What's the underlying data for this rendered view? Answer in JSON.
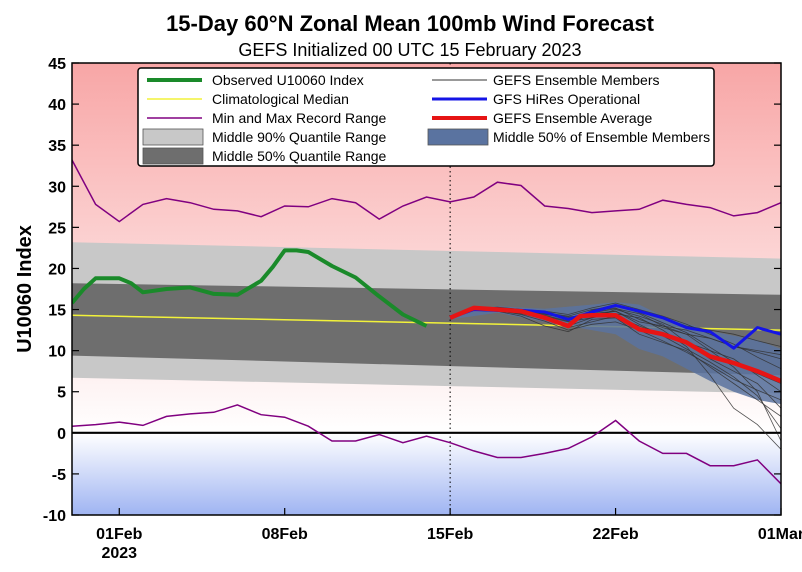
{
  "chart_data": {
    "type": "line",
    "title": "15-Day 60°N Zonal Mean 100mb Wind Forecast",
    "subtitle": "GEFS Initialized 00 UTC 15 February 2023",
    "ylabel": "U10060 Index",
    "xlabel": "",
    "ylim": [
      -10,
      45
    ],
    "xlim": [
      -2,
      28
    ],
    "yticks": [
      -10,
      -5,
      0,
      5,
      10,
      15,
      20,
      25,
      30,
      35,
      40,
      45
    ],
    "xticks": [
      {
        "day": 0,
        "label": "01Feb",
        "sublabel": "2023"
      },
      {
        "day": 7,
        "label": "08Feb",
        "sublabel": ""
      },
      {
        "day": 14,
        "label": "15Feb",
        "sublabel": ""
      },
      {
        "day": 21,
        "label": "22Feb",
        "sublabel": ""
      },
      {
        "day": 28,
        "label": "01Mar",
        "sublabel": ""
      }
    ],
    "init_day": 14,
    "legend": {
      "placement": "top",
      "entries": [
        {
          "label": "Observed U10060 Index",
          "style": "line",
          "color": "#1a8a2a",
          "width": 4
        },
        {
          "label": "Climatological Median",
          "style": "line",
          "color": "#f2f23a",
          "width": 1.5
        },
        {
          "label": "Min and Max Record Range",
          "style": "line",
          "color": "#800080",
          "width": 1.5
        },
        {
          "label": "Middle 90% Quantile Range",
          "style": "patch",
          "color": "#c8c8c8"
        },
        {
          "label": "Middle 50% Quantile Range",
          "style": "patch",
          "color": "#6e6e6e"
        },
        {
          "label": "GEFS Ensemble Members",
          "style": "line",
          "color": "#333333",
          "width": 1
        },
        {
          "label": "GFS HiRes Operational",
          "style": "line",
          "color": "#1414e6",
          "width": 3
        },
        {
          "label": "GEFS Ensemble Average",
          "style": "line",
          "color": "#e61414",
          "width": 4
        },
        {
          "label": "Middle 50% of Ensemble Members",
          "style": "patch",
          "color": "#5a73a0"
        }
      ]
    },
    "colors": {
      "positive_bg_top": "#f8a6a6",
      "negative_bg_bottom": "#9fb4f2",
      "zero_line": "#000000",
      "observed": "#1a8a2a",
      "climatology": "#f2f23a",
      "record": "#800080",
      "q90": "#c8c8c8",
      "q50": "#6e6e6e",
      "ensemble_member": "#333333",
      "operational": "#1414e6",
      "ensemble_mean": "#e61414",
      "ensemble_iqr": "#5a73a0"
    },
    "series": [
      {
        "name": "Observed U10060 Index",
        "x": [
          -2,
          -1.5,
          -1,
          0,
          0.5,
          1,
          2,
          3,
          4,
          5,
          6,
          6.5,
          7,
          7.5,
          8,
          9,
          10,
          11,
          12,
          13
        ],
        "values": [
          15.8,
          17.5,
          18.8,
          18.8,
          18.2,
          17.1,
          17.5,
          17.7,
          16.9,
          16.8,
          18.5,
          20.2,
          22.2,
          22.2,
          22.0,
          20.3,
          18.9,
          16.6,
          14.4,
          13.0
        ]
      },
      {
        "name": "Climatological Median",
        "x": [
          -2,
          28
        ],
        "values": [
          14.3,
          12.5
        ]
      },
      {
        "name": "Record Max",
        "x": [
          -2,
          -1,
          0,
          1,
          2,
          3,
          4,
          5,
          6,
          7,
          8,
          9,
          10,
          11,
          12,
          13,
          14,
          15,
          16,
          17,
          18,
          19,
          20,
          21,
          22,
          23,
          24,
          25,
          26,
          27,
          28
        ],
        "values": [
          33.2,
          27.8,
          25.7,
          27.8,
          28.5,
          28.0,
          27.2,
          27.0,
          26.3,
          27.6,
          27.5,
          28.5,
          28.0,
          26.0,
          27.6,
          28.7,
          28.1,
          28.7,
          30.5,
          30.1,
          27.6,
          27.3,
          26.8,
          27.0,
          27.2,
          28.3,
          27.8,
          27.4,
          26.4,
          26.8,
          28.0
        ]
      },
      {
        "name": "Record Min",
        "x": [
          -2,
          -1,
          0,
          1,
          2,
          3,
          4,
          5,
          6,
          7,
          8,
          9,
          10,
          11,
          12,
          13,
          14,
          15,
          16,
          17,
          18,
          19,
          20,
          21,
          22,
          23,
          24,
          25,
          26,
          27,
          28
        ],
        "values": [
          0.8,
          1.0,
          1.3,
          0.9,
          2.0,
          2.3,
          2.5,
          3.4,
          2.2,
          1.9,
          0.8,
          -1.0,
          -1.0,
          -0.2,
          -1.2,
          -0.4,
          -1.2,
          -2.2,
          -3.0,
          -3.0,
          -2.5,
          -1.9,
          -0.5,
          1.5,
          -1.0,
          -2.5,
          -2.5,
          -4.0,
          -4.0,
          -3.3,
          -6.2
        ]
      },
      {
        "name": "Middle 90% Quantile Range (upper)",
        "x": [
          -2,
          28
        ],
        "values": [
          23.2,
          21.2
        ]
      },
      {
        "name": "Middle 90% Quantile Range (lower)",
        "x": [
          -2,
          28
        ],
        "values": [
          6.7,
          4.8
        ]
      },
      {
        "name": "Middle 50% Quantile Range (upper)",
        "x": [
          -2,
          28
        ],
        "values": [
          18.2,
          16.8
        ]
      },
      {
        "name": "Middle 50% Quantile Range (lower)",
        "x": [
          -2,
          28
        ],
        "values": [
          9.4,
          7.0
        ]
      },
      {
        "name": "GEFS Ensemble Average",
        "x": [
          14,
          15,
          16,
          17,
          18,
          19,
          19.5,
          20,
          21,
          22,
          23,
          24,
          25,
          26,
          27,
          28
        ],
        "values": [
          14.0,
          15.2,
          15.0,
          14.8,
          14.0,
          13.0,
          14.2,
          14.3,
          14.3,
          12.6,
          12.0,
          11.0,
          9.3,
          8.5,
          7.5,
          6.3
        ]
      },
      {
        "name": "GFS HiRes Operational",
        "x": [
          14,
          15,
          16,
          17,
          18,
          19,
          20,
          21,
          22,
          23,
          24,
          25,
          26,
          27,
          28
        ],
        "values": [
          14.0,
          15.0,
          14.9,
          14.9,
          14.7,
          13.8,
          14.7,
          15.5,
          14.8,
          14.0,
          12.8,
          12.3,
          10.3,
          12.8,
          12.0
        ]
      },
      {
        "name": "Middle 50% of Ensemble Members (upper)",
        "x": [
          14,
          16,
          18,
          20,
          21,
          22,
          23,
          24,
          25,
          26,
          27,
          28
        ],
        "values": [
          14.4,
          15.4,
          15.1,
          15.6,
          15.9,
          15.6,
          14.2,
          13.3,
          12.4,
          11.8,
          11.3,
          10.2
        ]
      },
      {
        "name": "Middle 50% of Ensemble Members (lower)",
        "x": [
          14,
          16,
          18,
          20,
          21,
          22,
          23,
          24,
          25,
          26,
          27,
          28
        ],
        "values": [
          13.8,
          14.6,
          13.5,
          12.5,
          12.0,
          10.2,
          9.3,
          7.8,
          6.3,
          5.0,
          4.0,
          3.5
        ]
      }
    ],
    "ensemble_members": [
      {
        "x": [
          14,
          15,
          16,
          17,
          18,
          19,
          20,
          21,
          22,
          23,
          24,
          25,
          26,
          27,
          28
        ],
        "values": [
          14.0,
          15.0,
          15.0,
          14.7,
          14.0,
          13.2,
          14.5,
          14.8,
          13.5,
          13.0,
          12.5,
          11.5,
          10.5,
          9.8,
          9.0
        ]
      },
      {
        "x": [
          14,
          15,
          16,
          17,
          18,
          19,
          20,
          21,
          22,
          23,
          24,
          25,
          26,
          27,
          28
        ],
        "values": [
          14.0,
          15.1,
          15.2,
          15.0,
          14.6,
          14.2,
          15.0,
          15.4,
          14.8,
          14.0,
          13.0,
          12.5,
          12.0,
          11.2,
          10.5
        ]
      },
      {
        "x": [
          14,
          15,
          16,
          17,
          18,
          19,
          20,
          21,
          22,
          23,
          24,
          25,
          26,
          27,
          28
        ],
        "values": [
          14.0,
          15.0,
          14.8,
          14.2,
          13.0,
          12.3,
          13.8,
          14.0,
          12.0,
          11.0,
          10.0,
          8.0,
          6.0,
          4.0,
          2.0
        ]
      },
      {
        "x": [
          14,
          15,
          16,
          17,
          18,
          19,
          20,
          21,
          22,
          23,
          24,
          25,
          26,
          27,
          28
        ],
        "values": [
          14.0,
          15.2,
          15.1,
          14.6,
          14.2,
          13.5,
          14.0,
          15.0,
          14.2,
          13.2,
          11.0,
          9.0,
          7.5,
          6.0,
          3.0
        ]
      },
      {
        "x": [
          14,
          15,
          16,
          17,
          18,
          19,
          20,
          21,
          22,
          23,
          24,
          25,
          26,
          27,
          28
        ],
        "values": [
          14.0,
          15.1,
          15.3,
          15.0,
          14.5,
          13.8,
          14.8,
          15.2,
          13.8,
          12.8,
          12.0,
          10.0,
          8.0,
          5.0,
          -1.0
        ]
      },
      {
        "x": [
          14,
          15,
          16,
          17,
          18,
          19,
          20,
          21,
          22,
          23,
          24,
          25,
          26,
          27,
          28
        ],
        "values": [
          14.0,
          14.9,
          14.8,
          14.5,
          13.9,
          13.0,
          14.0,
          14.5,
          14.0,
          12.5,
          10.5,
          7.0,
          3.0,
          1.0,
          -2.0
        ]
      },
      {
        "x": [
          14,
          15,
          16,
          17,
          18,
          19,
          20,
          21,
          22,
          23,
          24,
          25,
          26,
          27,
          28
        ],
        "values": [
          14.0,
          15.2,
          15.0,
          14.8,
          14.4,
          14.0,
          14.6,
          15.1,
          14.5,
          13.0,
          12.0,
          11.5,
          10.5,
          10.0,
          9.5
        ]
      },
      {
        "x": [
          14,
          15,
          16,
          17,
          18,
          19,
          20,
          21,
          22,
          23,
          24,
          25,
          26,
          27,
          28
        ],
        "values": [
          14.0,
          15.0,
          15.1,
          14.9,
          14.1,
          12.8,
          13.5,
          14.2,
          13.0,
          12.0,
          11.0,
          10.0,
          9.0,
          7.0,
          5.0
        ]
      },
      {
        "x": [
          14,
          15,
          16,
          17,
          18,
          19,
          20,
          21,
          22,
          23,
          24,
          25,
          26,
          27,
          28
        ],
        "values": [
          14.0,
          15.0,
          14.9,
          14.6,
          14.3,
          13.6,
          14.9,
          15.6,
          14.6,
          13.4,
          12.2,
          10.4,
          8.6,
          7.2,
          6.0
        ]
      },
      {
        "x": [
          14,
          15,
          16,
          17,
          18,
          19,
          20,
          21,
          22,
          23,
          24,
          25,
          26,
          27,
          28
        ],
        "values": [
          14.0,
          15.1,
          15.0,
          14.8,
          14.5,
          14.1,
          14.3,
          14.8,
          13.2,
          11.8,
          10.2,
          8.6,
          6.8,
          4.5,
          0.5
        ]
      },
      {
        "x": [
          14,
          15,
          16,
          17,
          18,
          19,
          20,
          21,
          22,
          23,
          24,
          25,
          26,
          27,
          28
        ],
        "values": [
          14.0,
          15.0,
          15.2,
          15.0,
          14.8,
          14.4,
          15.2,
          15.8,
          15.0,
          14.2,
          13.2,
          12.0,
          10.8,
          9.2,
          7.8
        ]
      },
      {
        "x": [
          14,
          15,
          16,
          17,
          18,
          19,
          20,
          21,
          22,
          23,
          24,
          25,
          26,
          27,
          28
        ],
        "values": [
          14.0,
          15.0,
          14.9,
          14.4,
          13.6,
          12.5,
          13.2,
          13.5,
          12.5,
          11.2,
          9.8,
          8.2,
          6.5,
          5.2,
          4.0
        ]
      }
    ]
  }
}
